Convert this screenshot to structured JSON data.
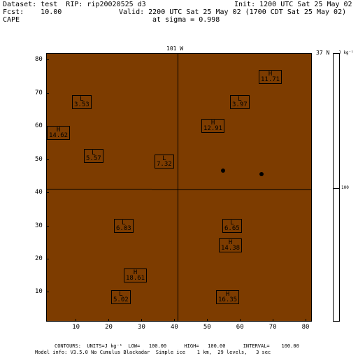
{
  "header": {
    "dataset": "Dataset: test  RIP: rip20020525 d3",
    "init": "Init: 1200 UTC Sat 25 May 02",
    "fcst": "Fcst:    10.00",
    "valid": "Valid: 2200 UTC Sat 25 May 02 (1700 CDT Sat 25 May 02)",
    "field": "CAPE",
    "sigma": "at sigma = 0.998"
  },
  "plot": {
    "top_label": "101 W",
    "right_label": "37 N",
    "background_color": "#7d3c00",
    "x_ticks": [
      "10",
      "20",
      "30",
      "40",
      "50",
      "60",
      "70",
      "80"
    ],
    "y_ticks": [
      "10",
      "20",
      "30",
      "40",
      "50",
      "60",
      "70",
      "80"
    ],
    "xlim": [
      1,
      82
    ],
    "ylim": [
      1,
      82
    ]
  },
  "colorbar": {
    "units": "J kg⁻¹",
    "mid_label": "100"
  },
  "markers": [
    {
      "type": "L",
      "value": "3.53"
    },
    {
      "type": "L",
      "value": "3.97"
    },
    {
      "type": "H",
      "value": "11.71"
    },
    {
      "type": "H",
      "value": "12.91"
    },
    {
      "type": "H",
      "value": "14.62"
    },
    {
      "type": "L",
      "value": "5.57"
    },
    {
      "type": "L",
      "value": "7.32"
    },
    {
      "type": "L",
      "value": "6.03"
    },
    {
      "type": "L",
      "value": "6.65"
    },
    {
      "type": "H",
      "value": "14.38"
    },
    {
      "type": "H",
      "value": "18.61"
    },
    {
      "type": "L",
      "value": "5.02"
    },
    {
      "type": "H",
      "value": "16.35"
    }
  ],
  "footer": {
    "contours": "CONTOURS:  UNITS=J kg⁻¹  LOW=   100.00      HIGH=   100.00      INTERVAL=    100.00",
    "model": "Model info: V3.5.0 No Cumulus Blackadar  Simple ice    1 km,  29 levels,   3 sec"
  }
}
